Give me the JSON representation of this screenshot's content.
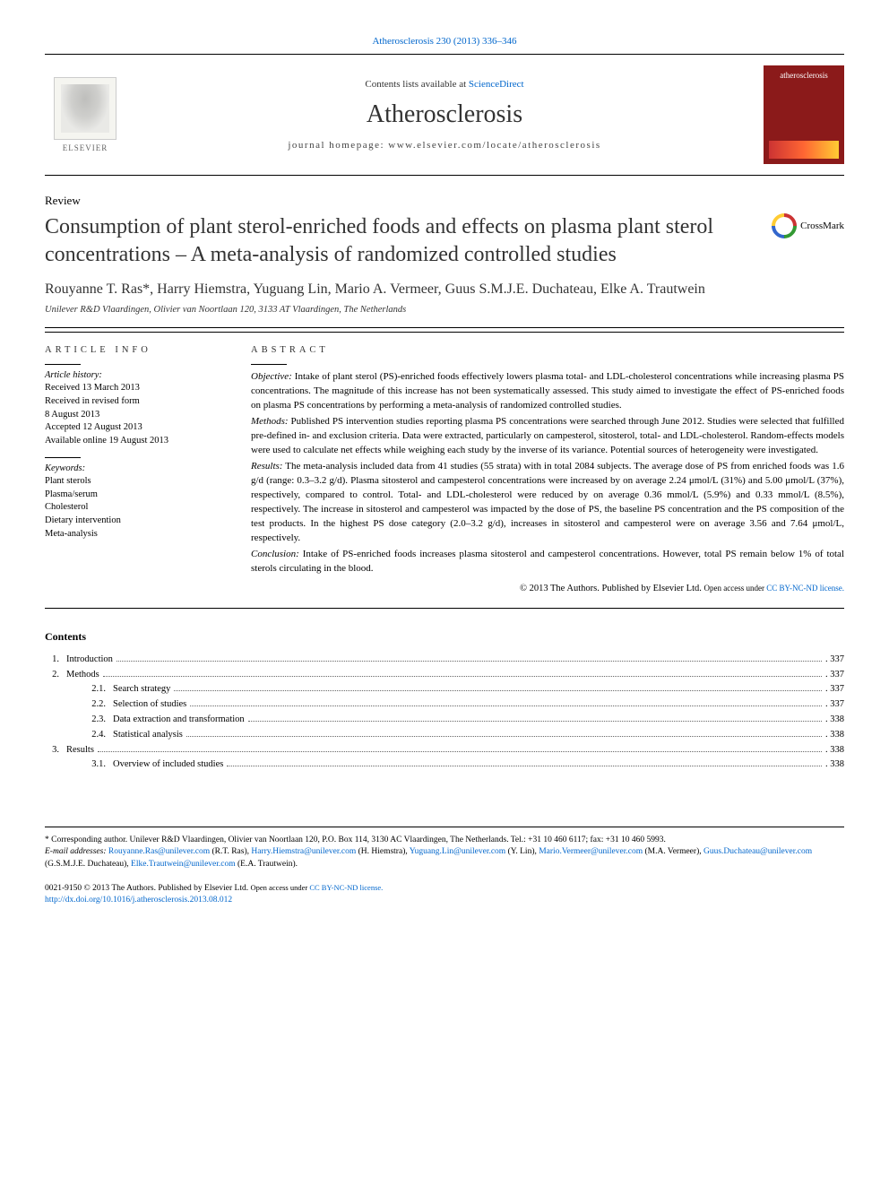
{
  "top_citation": "Atherosclerosis 230 (2013) 336–346",
  "header": {
    "contents_prefix": "Contents lists available at ",
    "contents_link": "ScienceDirect",
    "journal": "Atherosclerosis",
    "homepage_prefix": "journal homepage: ",
    "homepage": "www.elsevier.com/locate/atherosclerosis",
    "elsevier": "ELSEVIER",
    "cover_label": "atherosclerosis"
  },
  "article": {
    "type": "Review",
    "title": "Consumption of plant sterol-enriched foods and effects on plasma plant sterol concentrations – A meta-analysis of randomized controlled studies",
    "crossmark": "CrossMark",
    "authors": "Rouyanne T. Ras*, Harry Hiemstra, Yuguang Lin, Mario A. Vermeer, Guus S.M.J.E. Duchateau, Elke A. Trautwein",
    "affiliation": "Unilever R&D Vlaardingen, Olivier van Noortlaan 120, 3133 AT Vlaardingen, The Netherlands"
  },
  "info": {
    "label": "ARTICLE INFO",
    "history_label": "Article history:",
    "history": [
      "Received 13 March 2013",
      "Received in revised form",
      "8 August 2013",
      "Accepted 12 August 2013",
      "Available online 19 August 2013"
    ],
    "keywords_label": "Keywords:",
    "keywords": [
      "Plant sterols",
      "Plasma/serum",
      "Cholesterol",
      "Dietary intervention",
      "Meta-analysis"
    ]
  },
  "abstract": {
    "label": "ABSTRACT",
    "objective_label": "Objective:",
    "objective": " Intake of plant sterol (PS)-enriched foods effectively lowers plasma total- and LDL-cholesterol concentrations while increasing plasma PS concentrations. The magnitude of this increase has not been systematically assessed. This study aimed to investigate the effect of PS-enriched foods on plasma PS concentrations by performing a meta-analysis of randomized controlled studies.",
    "methods_label": "Methods:",
    "methods": " Published PS intervention studies reporting plasma PS concentrations were searched through June 2012. Studies were selected that fulfilled pre-defined in- and exclusion criteria. Data were extracted, particularly on campesterol, sitosterol, total- and LDL-cholesterol. Random-effects models were used to calculate net effects while weighing each study by the inverse of its variance. Potential sources of heterogeneity were investigated.",
    "results_label": "Results:",
    "results": " The meta-analysis included data from 41 studies (55 strata) with in total 2084 subjects. The average dose of PS from enriched foods was 1.6 g/d (range: 0.3–3.2 g/d). Plasma sitosterol and campesterol concentrations were increased by on average 2.24 μmol/L (31%) and 5.00 μmol/L (37%), respectively, compared to control. Total- and LDL-cholesterol were reduced by on average 0.36 mmol/L (5.9%) and 0.33 mmol/L (8.5%), respectively. The increase in sitosterol and campesterol was impacted by the dose of PS, the baseline PS concentration and the PS composition of the test products. In the highest PS dose category (2.0–3.2 g/d), increases in sitosterol and campesterol were on average 3.56 and 7.64 μmol/L, respectively.",
    "conclusion_label": "Conclusion:",
    "conclusion": " Intake of PS-enriched foods increases plasma sitosterol and campesterol concentrations. However, total PS remain below 1% of total sterols circulating in the blood.",
    "copyright": "© 2013 The Authors. Published by Elsevier Ltd. ",
    "license_prefix": "Open access under ",
    "license": "CC BY-NC-ND license."
  },
  "toc": {
    "heading": "Contents",
    "items": [
      {
        "num": "1.",
        "title": "Introduction",
        "page": "337",
        "level": 0
      },
      {
        "num": "2.",
        "title": "Methods",
        "page": "337",
        "level": 0
      },
      {
        "num": "2.1.",
        "title": "Search strategy",
        "page": "337",
        "level": 1
      },
      {
        "num": "2.2.",
        "title": "Selection of studies",
        "page": "337",
        "level": 1
      },
      {
        "num": "2.3.",
        "title": "Data extraction and transformation",
        "page": "338",
        "level": 1
      },
      {
        "num": "2.4.",
        "title": "Statistical analysis",
        "page": "338",
        "level": 1
      },
      {
        "num": "3.",
        "title": "Results",
        "page": "338",
        "level": 0
      },
      {
        "num": "3.1.",
        "title": "Overview of included studies",
        "page": "338",
        "level": 1
      }
    ]
  },
  "footer": {
    "corresponding": "* Corresponding author. Unilever R&D Vlaardingen, Olivier van Noortlaan 120, P.O. Box 114, 3130 AC Vlaardingen, The Netherlands. Tel.: +31 10 460 6117; fax: +31 10 460 5993.",
    "emails_label": "E-mail addresses: ",
    "emails": [
      {
        "addr": "Rouyanne.Ras@unilever.com",
        "who": " (R.T. Ras), "
      },
      {
        "addr": "Harry.Hiemstra@unilever.com",
        "who": " (H. Hiemstra), "
      },
      {
        "addr": "Yuguang.Lin@unilever.com",
        "who": " (Y. Lin), "
      },
      {
        "addr": "Mario.Vermeer@unilever.com",
        "who": " (M.A. Vermeer), "
      },
      {
        "addr": "Guus.Duchateau@unilever.com",
        "who": " (G.S.M.J.E. Duchateau), "
      },
      {
        "addr": "Elke.Trautwein@unilever.com",
        "who": " (E.A. Trautwein)."
      }
    ],
    "issn_line": "0021-9150 © 2013 The Authors. Published by Elsevier Ltd. ",
    "license_prefix": "Open access under ",
    "license": "CC BY-NC-ND license.",
    "doi": "http://dx.doi.org/10.1016/j.atherosclerosis.2013.08.012"
  },
  "colors": {
    "link": "#0066cc",
    "cover_bg": "#8b1a1a",
    "text": "#000000"
  }
}
